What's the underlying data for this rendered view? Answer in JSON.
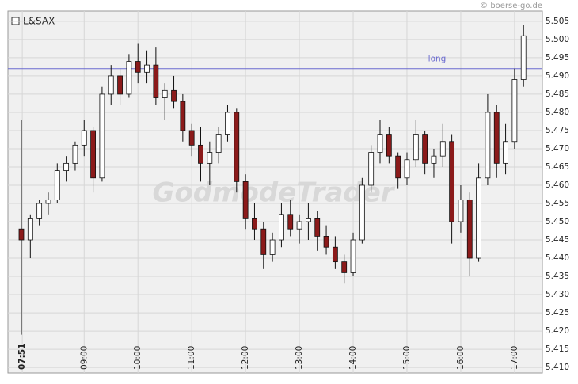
{
  "chart_data": {
    "type": "candlestick",
    "credit": "© boerse-go.de",
    "watermark": "GodmodeTrader",
    "xlim": [
      455,
      1051
    ],
    "ylim": [
      5.4085,
      5.5078
    ],
    "grid": true,
    "xticks": [
      {
        "value": 471,
        "label": "07:51"
      },
      {
        "value": 540,
        "label": "09:00"
      },
      {
        "value": 600,
        "label": "10:00"
      },
      {
        "value": 660,
        "label": "11:00"
      },
      {
        "value": 720,
        "label": "12:00"
      },
      {
        "value": 780,
        "label": "13:00"
      },
      {
        "value": 840,
        "label": "14:00"
      },
      {
        "value": 900,
        "label": "15:00"
      },
      {
        "value": 960,
        "label": "16:00"
      },
      {
        "value": 1020,
        "label": "17:00"
      }
    ],
    "yticks": [
      {
        "value": 5.41,
        "label": "5.410"
      },
      {
        "value": 5.415,
        "label": "5.415"
      },
      {
        "value": 5.42,
        "label": "5.420"
      },
      {
        "value": 5.425,
        "label": "5.425"
      },
      {
        "value": 5.43,
        "label": "5.430"
      },
      {
        "value": 5.435,
        "label": "5.435"
      },
      {
        "value": 5.44,
        "label": "5.440"
      },
      {
        "value": 5.445,
        "label": "5.445"
      },
      {
        "value": 5.45,
        "label": "5.450"
      },
      {
        "value": 5.455,
        "label": "5.455"
      },
      {
        "value": 5.46,
        "label": "5.460"
      },
      {
        "value": 5.465,
        "label": "5.465"
      },
      {
        "value": 5.47,
        "label": "5.470"
      },
      {
        "value": 5.475,
        "label": "5.475"
      },
      {
        "value": 5.48,
        "label": "5.480"
      },
      {
        "value": 5.485,
        "label": "5.485"
      },
      {
        "value": 5.49,
        "label": "5.490"
      },
      {
        "value": 5.495,
        "label": "5.495"
      },
      {
        "value": 5.5,
        "label": "5.500"
      },
      {
        "value": 5.505,
        "label": "5.505"
      }
    ],
    "hlines": [
      {
        "value": 5.492,
        "label": "long",
        "color": "#6a6ad0"
      }
    ],
    "x": [
      470,
      480,
      490,
      500,
      510,
      520,
      530,
      540,
      550,
      560,
      570,
      580,
      590,
      600,
      610,
      620,
      630,
      640,
      650,
      660,
      670,
      680,
      690,
      700,
      710,
      720,
      730,
      740,
      750,
      760,
      770,
      780,
      790,
      800,
      810,
      820,
      830,
      840,
      850,
      860,
      870,
      880,
      890,
      900,
      910,
      920,
      930,
      940,
      950,
      960,
      970,
      980,
      990,
      1000,
      1010,
      1020,
      1030
    ],
    "series": [
      {
        "name": "L&SAX",
        "up_color": "#ffffff",
        "down_color": "#8b1a1a",
        "open": [
          5.448,
          5.445,
          5.451,
          5.455,
          5.456,
          5.464,
          5.466,
          5.471,
          5.475,
          5.462,
          5.485,
          5.49,
          5.485,
          5.494,
          5.491,
          5.493,
          5.484,
          5.486,
          5.483,
          5.475,
          5.471,
          5.466,
          5.469,
          5.474,
          5.48,
          5.461,
          5.451,
          5.448,
          5.441,
          5.445,
          5.452,
          5.448,
          5.45,
          5.451,
          5.446,
          5.443,
          5.439,
          5.436,
          5.445,
          5.46,
          5.469,
          5.474,
          5.468,
          5.462,
          5.467,
          5.474,
          5.466,
          5.468,
          5.472,
          5.45,
          5.456,
          5.44,
          5.462,
          5.48,
          5.466,
          5.472,
          5.489
        ],
        "high": [
          5.478,
          5.452,
          5.456,
          5.458,
          5.466,
          5.468,
          5.472,
          5.478,
          5.476,
          5.487,
          5.493,
          5.492,
          5.496,
          5.499,
          5.497,
          5.498,
          5.488,
          5.49,
          5.485,
          5.477,
          5.476,
          5.472,
          5.476,
          5.482,
          5.481,
          5.463,
          5.455,
          5.45,
          5.447,
          5.455,
          5.456,
          5.452,
          5.455,
          5.453,
          5.449,
          5.446,
          5.441,
          5.447,
          5.462,
          5.471,
          5.478,
          5.476,
          5.469,
          5.469,
          5.478,
          5.475,
          5.47,
          5.477,
          5.474,
          5.46,
          5.458,
          5.466,
          5.485,
          5.482,
          5.477,
          5.492,
          5.504
        ],
        "low": [
          5.419,
          5.44,
          5.449,
          5.452,
          5.455,
          5.461,
          5.464,
          5.468,
          5.458,
          5.461,
          5.482,
          5.482,
          5.484,
          5.488,
          5.488,
          5.482,
          5.478,
          5.481,
          5.472,
          5.468,
          5.461,
          5.46,
          5.466,
          5.472,
          5.458,
          5.448,
          5.445,
          5.437,
          5.439,
          5.443,
          5.446,
          5.444,
          5.445,
          5.442,
          5.441,
          5.437,
          5.433,
          5.435,
          5.444,
          5.458,
          5.466,
          5.466,
          5.459,
          5.46,
          5.465,
          5.463,
          5.462,
          5.465,
          5.444,
          5.447,
          5.435,
          5.439,
          5.46,
          5.462,
          5.463,
          5.47,
          5.487
        ],
        "close": [
          5.445,
          5.451,
          5.455,
          5.456,
          5.464,
          5.466,
          5.471,
          5.475,
          5.462,
          5.485,
          5.49,
          5.485,
          5.494,
          5.491,
          5.493,
          5.484,
          5.486,
          5.483,
          5.475,
          5.471,
          5.466,
          5.469,
          5.474,
          5.48,
          5.461,
          5.451,
          5.448,
          5.441,
          5.445,
          5.452,
          5.448,
          5.45,
          5.451,
          5.446,
          5.443,
          5.439,
          5.436,
          5.445,
          5.46,
          5.469,
          5.474,
          5.468,
          5.462,
          5.467,
          5.474,
          5.466,
          5.468,
          5.472,
          5.45,
          5.456,
          5.44,
          5.462,
          5.48,
          5.466,
          5.472,
          5.489,
          5.501
        ]
      }
    ]
  }
}
